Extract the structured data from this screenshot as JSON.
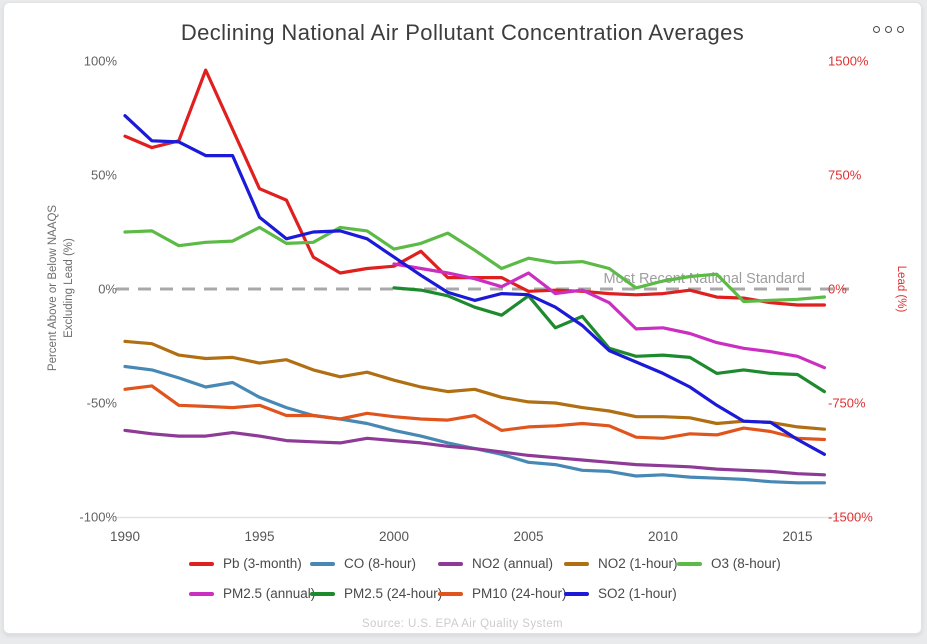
{
  "card": {
    "title": "Declining National Air Pollutant Concentration Averages",
    "menu_icon": "three-dots-horizontal-menu",
    "source": "Source: U.S. EPA Air Quality System"
  },
  "chart_data": {
    "type": "line",
    "title": "Declining National Air Pollutant Concentration Averages",
    "years": [
      1990,
      1991,
      1992,
      1993,
      1994,
      1995,
      1996,
      1997,
      1998,
      1999,
      2000,
      2001,
      2002,
      2003,
      2004,
      2005,
      2006,
      2007,
      2008,
      2009,
      2010,
      2011,
      2012,
      2013,
      2014,
      2015,
      2016
    ],
    "x_tick_labels": [
      "1990",
      "1995",
      "2000",
      "2005",
      "2010",
      "2015"
    ],
    "x_tick_values": [
      1990,
      1995,
      2000,
      2005,
      2010,
      2015
    ],
    "grid": "off",
    "axes": {
      "left": {
        "title_lines": [
          "Percent Above or Below NAAQS",
          "Excluding Lead (%)"
        ],
        "ticks": [
          "100%",
          "50%",
          "0%",
          "-50%",
          "-100%"
        ],
        "values": [
          100,
          50,
          0,
          -50,
          -100
        ],
        "range": [
          -100,
          100
        ],
        "color": "#636363"
      },
      "right": {
        "title": "Lead (%)",
        "ticks": [
          "1500%",
          "750%",
          "0%",
          "-750%",
          "-1500%"
        ],
        "values": [
          1500,
          750,
          0,
          -750,
          -1500
        ],
        "range": [
          -1500,
          1500
        ],
        "color": "#e03131"
      }
    },
    "standard_line": {
      "label": "Most Recent National Standard",
      "value": 0,
      "style": "dashed",
      "color": "#a8a8a8",
      "label_color": "#9e9e9e"
    },
    "legend_position": "bottom",
    "legend_rows": [
      [
        "Pb (3-month)",
        "CO (8-hour)",
        "NO2 (annual)",
        "NO2 (1-hour)",
        "O3 (8-hour)"
      ],
      [
        "PM2.5 (annual)",
        "PM2.5 (24-hour)",
        "PM10 (24-hour)",
        "SO2 (1-hour)"
      ]
    ],
    "series": [
      {
        "name": "Pb (3-month)",
        "color": "#e01f1f",
        "axis": "right",
        "start_year": 1990,
        "values": [
          1005,
          930,
          975,
          1440,
          1050,
          660,
          585,
          210,
          105,
          135,
          150,
          248,
          75,
          75,
          75,
          -15,
          -8,
          -15,
          -30,
          -38,
          -30,
          -8,
          -53,
          -60,
          -90,
          -105,
          -105
        ]
      },
      {
        "name": "CO (8-hour)",
        "color": "#4789b4",
        "axis": "left",
        "start_year": 1990,
        "values": [
          -34,
          -35.5,
          -39,
          -43,
          -41,
          -47.5,
          -52,
          -55.5,
          -57,
          -59,
          -62,
          -64.5,
          -67.5,
          -70,
          -72.5,
          -76,
          -77,
          -79.5,
          -80,
          -82,
          -81.5,
          -82.5,
          -83,
          -83.5,
          -84.5,
          -85,
          -85
        ]
      },
      {
        "name": "NO2 (annual)",
        "color": "#8e3b97",
        "axis": "left",
        "start_year": 1990,
        "values": [
          -62,
          -63.5,
          -64.5,
          -64.5,
          -63,
          -64.5,
          -66.5,
          -67,
          -67.5,
          -65.5,
          -66.5,
          -67.5,
          -69,
          -70,
          -71.5,
          -73,
          -74,
          -75,
          -76,
          -77,
          -77.5,
          -78,
          -79,
          -79.5,
          -80,
          -81,
          -81.5
        ]
      },
      {
        "name": "NO2 (1-hour)",
        "color": "#b06f12",
        "axis": "left",
        "start_year": 1990,
        "values": [
          -23,
          -24,
          -29,
          -30.5,
          -30,
          -32.5,
          -31,
          -35.5,
          -38.5,
          -36.5,
          -40,
          -43,
          -45,
          -44,
          -47.5,
          -49.5,
          -50,
          -52,
          -53.5,
          -56,
          -56,
          -56.5,
          -59,
          -58,
          -58.5,
          -60.5,
          -61.5
        ]
      },
      {
        "name": "O3 (8-hour)",
        "color": "#5cba47",
        "axis": "left",
        "start_year": 1990,
        "values": [
          25,
          25.5,
          19,
          20.5,
          21,
          27,
          20,
          20.5,
          27,
          25.5,
          17.5,
          20,
          24.5,
          17,
          9,
          13.5,
          11.5,
          12,
          9,
          0.5,
          3.5,
          5.5,
          6.5,
          -5.5,
          -5,
          -4.5,
          -3.5
        ]
      },
      {
        "name": "PM2.5 (annual)",
        "color": "#cb2fc2",
        "axis": "left",
        "start_year": 2000,
        "values": [
          11,
          9,
          7,
          4.5,
          1,
          7,
          -2,
          -0.5,
          -6,
          -17.5,
          -17,
          -19.5,
          -23.5,
          -26,
          -27.5,
          -29.5,
          -34.5
        ]
      },
      {
        "name": "PM2.5 (24-hour)",
        "color": "#1e8a2e",
        "axis": "left",
        "start_year": 2000,
        "values": [
          0.5,
          -0.5,
          -3,
          -8,
          -11.5,
          -3,
          -17,
          -12,
          -26,
          -29.5,
          -29,
          -30,
          -37,
          -35.5,
          -37,
          -37.5,
          -45
        ]
      },
      {
        "name": "PM10 (24-hour)",
        "color": "#e0551d",
        "axis": "left",
        "start_year": 1990,
        "values": [
          -44,
          -42.5,
          -51,
          -51.5,
          -52,
          -51,
          -55.5,
          -55.5,
          -57,
          -54.5,
          -56,
          -57,
          -57.5,
          -55.5,
          -62,
          -60.5,
          -60,
          -59,
          -60,
          -65,
          -65.5,
          -63.5,
          -64,
          -61,
          -62.5,
          -65.5,
          -66
        ]
      },
      {
        "name": "SO2 (1-hour)",
        "color": "#1a1ad8",
        "axis": "left",
        "start_year": 1990,
        "values": [
          76,
          65,
          64.5,
          58.5,
          58.5,
          31.5,
          22,
          25,
          25.5,
          22,
          14,
          6,
          -1.5,
          -5,
          -2,
          -2.5,
          -8,
          -16,
          -27,
          -32,
          -37,
          -43,
          -51,
          -58,
          -58.5,
          -66,
          -72.5
        ]
      }
    ]
  }
}
